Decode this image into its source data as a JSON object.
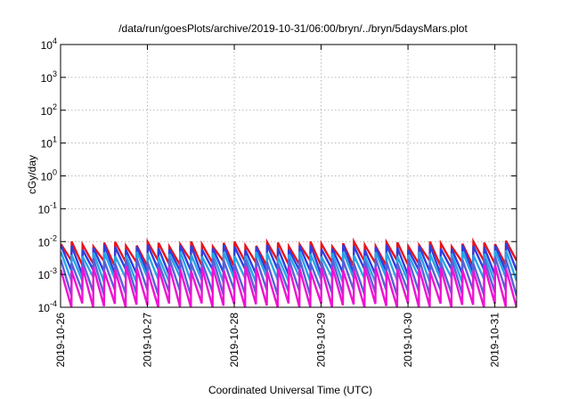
{
  "chart_data": {
    "type": "line",
    "title": "/data/run/goesPlots/archive/2019-10-31/06:00/bryn/../bryn/5daysMars.plot",
    "xlabel": "Coordinated Universal Time (UTC)",
    "ylabel": "cGy/day",
    "y_scale": "log",
    "ylim": [
      0.0001,
      10000
    ],
    "xlim": [
      "2019-10-26T00:00",
      "2019-10-31T06:00"
    ],
    "x_ticks": [
      "2019-10-26",
      "2019-10-27",
      "2019-10-28",
      "2019-10-29",
      "2019-10-30",
      "2019-10-31"
    ],
    "y_ticks": [
      {
        "base": "10",
        "exp": "-4"
      },
      {
        "base": "10",
        "exp": "-3"
      },
      {
        "base": "10",
        "exp": "-2"
      },
      {
        "base": "10",
        "exp": "-1"
      },
      {
        "base": "10",
        "exp": "0"
      },
      {
        "base": "10",
        "exp": "1"
      },
      {
        "base": "10",
        "exp": "2"
      },
      {
        "base": "10",
        "exp": "3"
      },
      {
        "base": "10",
        "exp": "4"
      }
    ],
    "grid": true,
    "legend": "none",
    "sawtooth_cycle_hours": 3,
    "series": [
      {
        "color": "#e8131b",
        "peak": 0.0085,
        "trough": 0.0022
      },
      {
        "color": "#2f3fe0",
        "peak": 0.0068,
        "trough": 0.0012
      },
      {
        "color": "#27a4e6",
        "peak": 0.0042,
        "trough": 0.0007
      },
      {
        "color": "#5b5fd8",
        "peak": 0.0026,
        "trough": 0.00028
      },
      {
        "color": "#ee12d2",
        "peak": 0.0015,
        "trough": 0.00011
      }
    ],
    "colors": {
      "grid": "#b8b8b8",
      "frame": "#000000"
    }
  }
}
